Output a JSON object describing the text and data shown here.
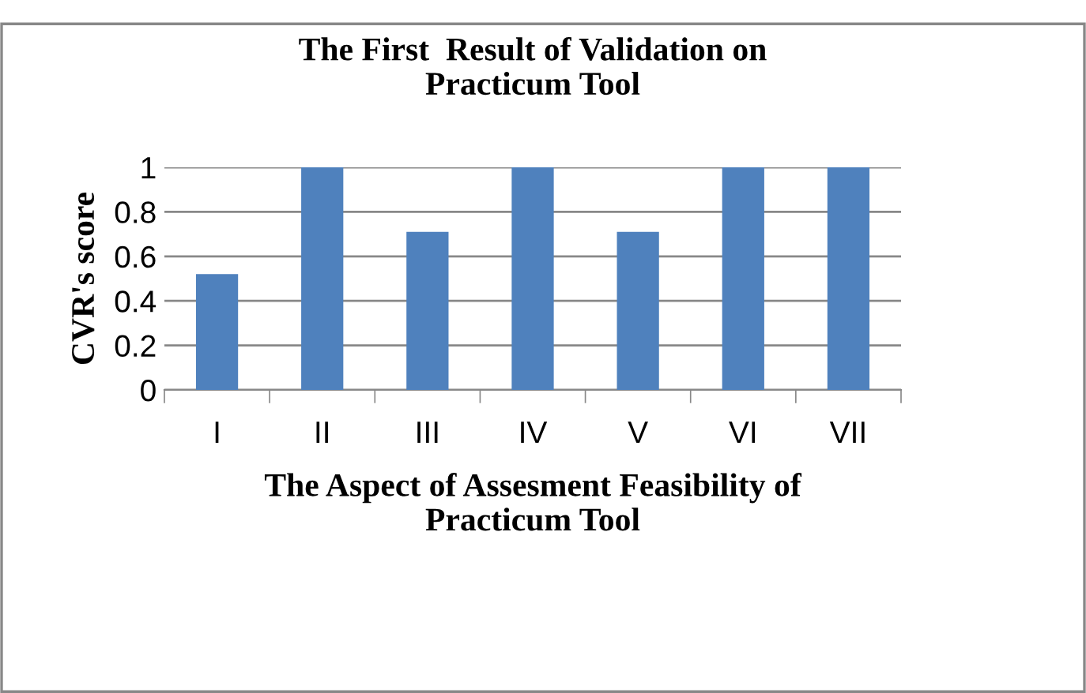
{
  "chart_data": {
    "type": "bar",
    "title": "The First  Result of Validation on\nPracticum Tool",
    "xlabel": "The Aspect of Assesment Feasibility of\nPracticum Tool",
    "ylabel": "CVR's score",
    "categories": [
      "I",
      "II",
      "III",
      "IV",
      "V",
      "VI",
      "VII"
    ],
    "values": [
      0.52,
      1,
      0.71,
      1,
      0.71,
      1,
      1
    ],
    "color": "#4f81bd",
    "ylim": [
      0,
      1
    ],
    "yticks": [
      0,
      0.2,
      0.4,
      0.6,
      0.8,
      1
    ],
    "grid": "y",
    "legend": false
  }
}
